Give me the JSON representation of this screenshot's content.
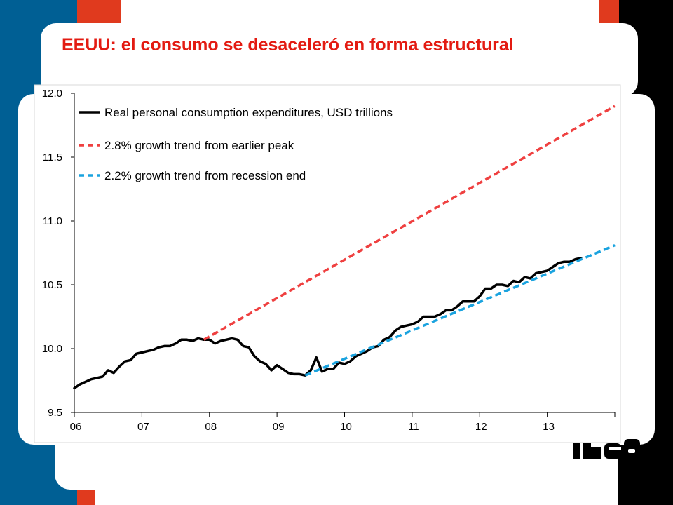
{
  "slide": {
    "title": "EEUU: el consumo se desaceleró en forma estructural",
    "logo_text": "IUEA",
    "colors": {
      "title": "#e31b12",
      "left_band": "#005f94",
      "accent_red": "#e03a1e",
      "right_band": "#000000"
    }
  },
  "chart_data": {
    "type": "line",
    "title": "",
    "xlabel": "",
    "ylabel": "",
    "ylim": [
      9.5,
      12.0
    ],
    "yticks": [
      "12.0",
      "11.5",
      "11.0",
      "10.5",
      "10.0",
      "9.5"
    ],
    "ytick_values": [
      12.0,
      11.5,
      11.0,
      10.5,
      10.0,
      9.5
    ],
    "xlim": [
      2006,
      2014
    ],
    "xticks": [
      "06",
      "07",
      "08",
      "09",
      "10",
      "11",
      "12",
      "13"
    ],
    "xtick_values": [
      2006,
      2007,
      2008,
      2009,
      2010,
      2011,
      2012,
      2013
    ],
    "grid": false,
    "legend_position": "top-left",
    "series": [
      {
        "name": "Real personal consumption expenditures, USD trillions",
        "style": "solid",
        "color": "#000000",
        "x": [
          2006.0,
          2006.083,
          2006.167,
          2006.25,
          2006.333,
          2006.417,
          2006.5,
          2006.583,
          2006.667,
          2006.75,
          2006.833,
          2006.917,
          2007.0,
          2007.083,
          2007.167,
          2007.25,
          2007.333,
          2007.417,
          2007.5,
          2007.583,
          2007.667,
          2007.75,
          2007.833,
          2007.917,
          2008.0,
          2008.083,
          2008.167,
          2008.25,
          2008.333,
          2008.417,
          2008.5,
          2008.583,
          2008.667,
          2008.75,
          2008.833,
          2008.917,
          2009.0,
          2009.083,
          2009.167,
          2009.25,
          2009.333,
          2009.417,
          2009.5,
          2009.583,
          2009.667,
          2009.75,
          2009.833,
          2009.917,
          2010.0,
          2010.083,
          2010.167,
          2010.25,
          2010.333,
          2010.417,
          2010.5,
          2010.583,
          2010.667,
          2010.75,
          2010.833,
          2010.917,
          2011.0,
          2011.083,
          2011.167,
          2011.25,
          2011.333,
          2011.417,
          2011.5,
          2011.583,
          2011.667,
          2011.75,
          2011.833,
          2011.917,
          2012.0,
          2012.083,
          2012.167,
          2012.25,
          2012.333,
          2012.417,
          2012.5,
          2012.583,
          2012.667,
          2012.75,
          2012.833,
          2012.917,
          2013.0,
          2013.083,
          2013.167,
          2013.25,
          2013.333,
          2013.417,
          2013.5
        ],
        "values": [
          9.69,
          9.72,
          9.74,
          9.76,
          9.77,
          9.78,
          9.83,
          9.81,
          9.86,
          9.9,
          9.91,
          9.96,
          9.97,
          9.98,
          9.99,
          10.01,
          10.02,
          10.02,
          10.04,
          10.07,
          10.07,
          10.06,
          10.08,
          10.07,
          10.07,
          10.04,
          10.06,
          10.07,
          10.08,
          10.07,
          10.02,
          10.01,
          9.94,
          9.9,
          9.88,
          9.83,
          9.87,
          9.84,
          9.81,
          9.8,
          9.8,
          9.79,
          9.83,
          9.93,
          9.82,
          9.84,
          9.84,
          9.89,
          9.88,
          9.9,
          9.94,
          9.96,
          9.98,
          10.01,
          10.02,
          10.07,
          10.09,
          10.14,
          10.17,
          10.18,
          10.19,
          10.21,
          10.25,
          10.25,
          10.25,
          10.27,
          10.3,
          10.3,
          10.33,
          10.37,
          10.37,
          10.37,
          10.41,
          10.47,
          10.47,
          10.5,
          10.5,
          10.49,
          10.53,
          10.52,
          10.56,
          10.55,
          10.59,
          10.6,
          10.61,
          10.64,
          10.67,
          10.68,
          10.68,
          10.7,
          10.71
        ]
      },
      {
        "name": "2.8% growth trend from earlier peak",
        "style": "dashed",
        "color": "#ef4040",
        "x": [
          2007.917,
          2014.0
        ],
        "values": [
          10.07,
          11.9
        ]
      },
      {
        "name": "2.2% growth trend from recession end",
        "style": "dashed",
        "color": "#1aa3df",
        "x": [
          2009.417,
          2014.0
        ],
        "values": [
          9.79,
          10.81
        ]
      }
    ]
  }
}
